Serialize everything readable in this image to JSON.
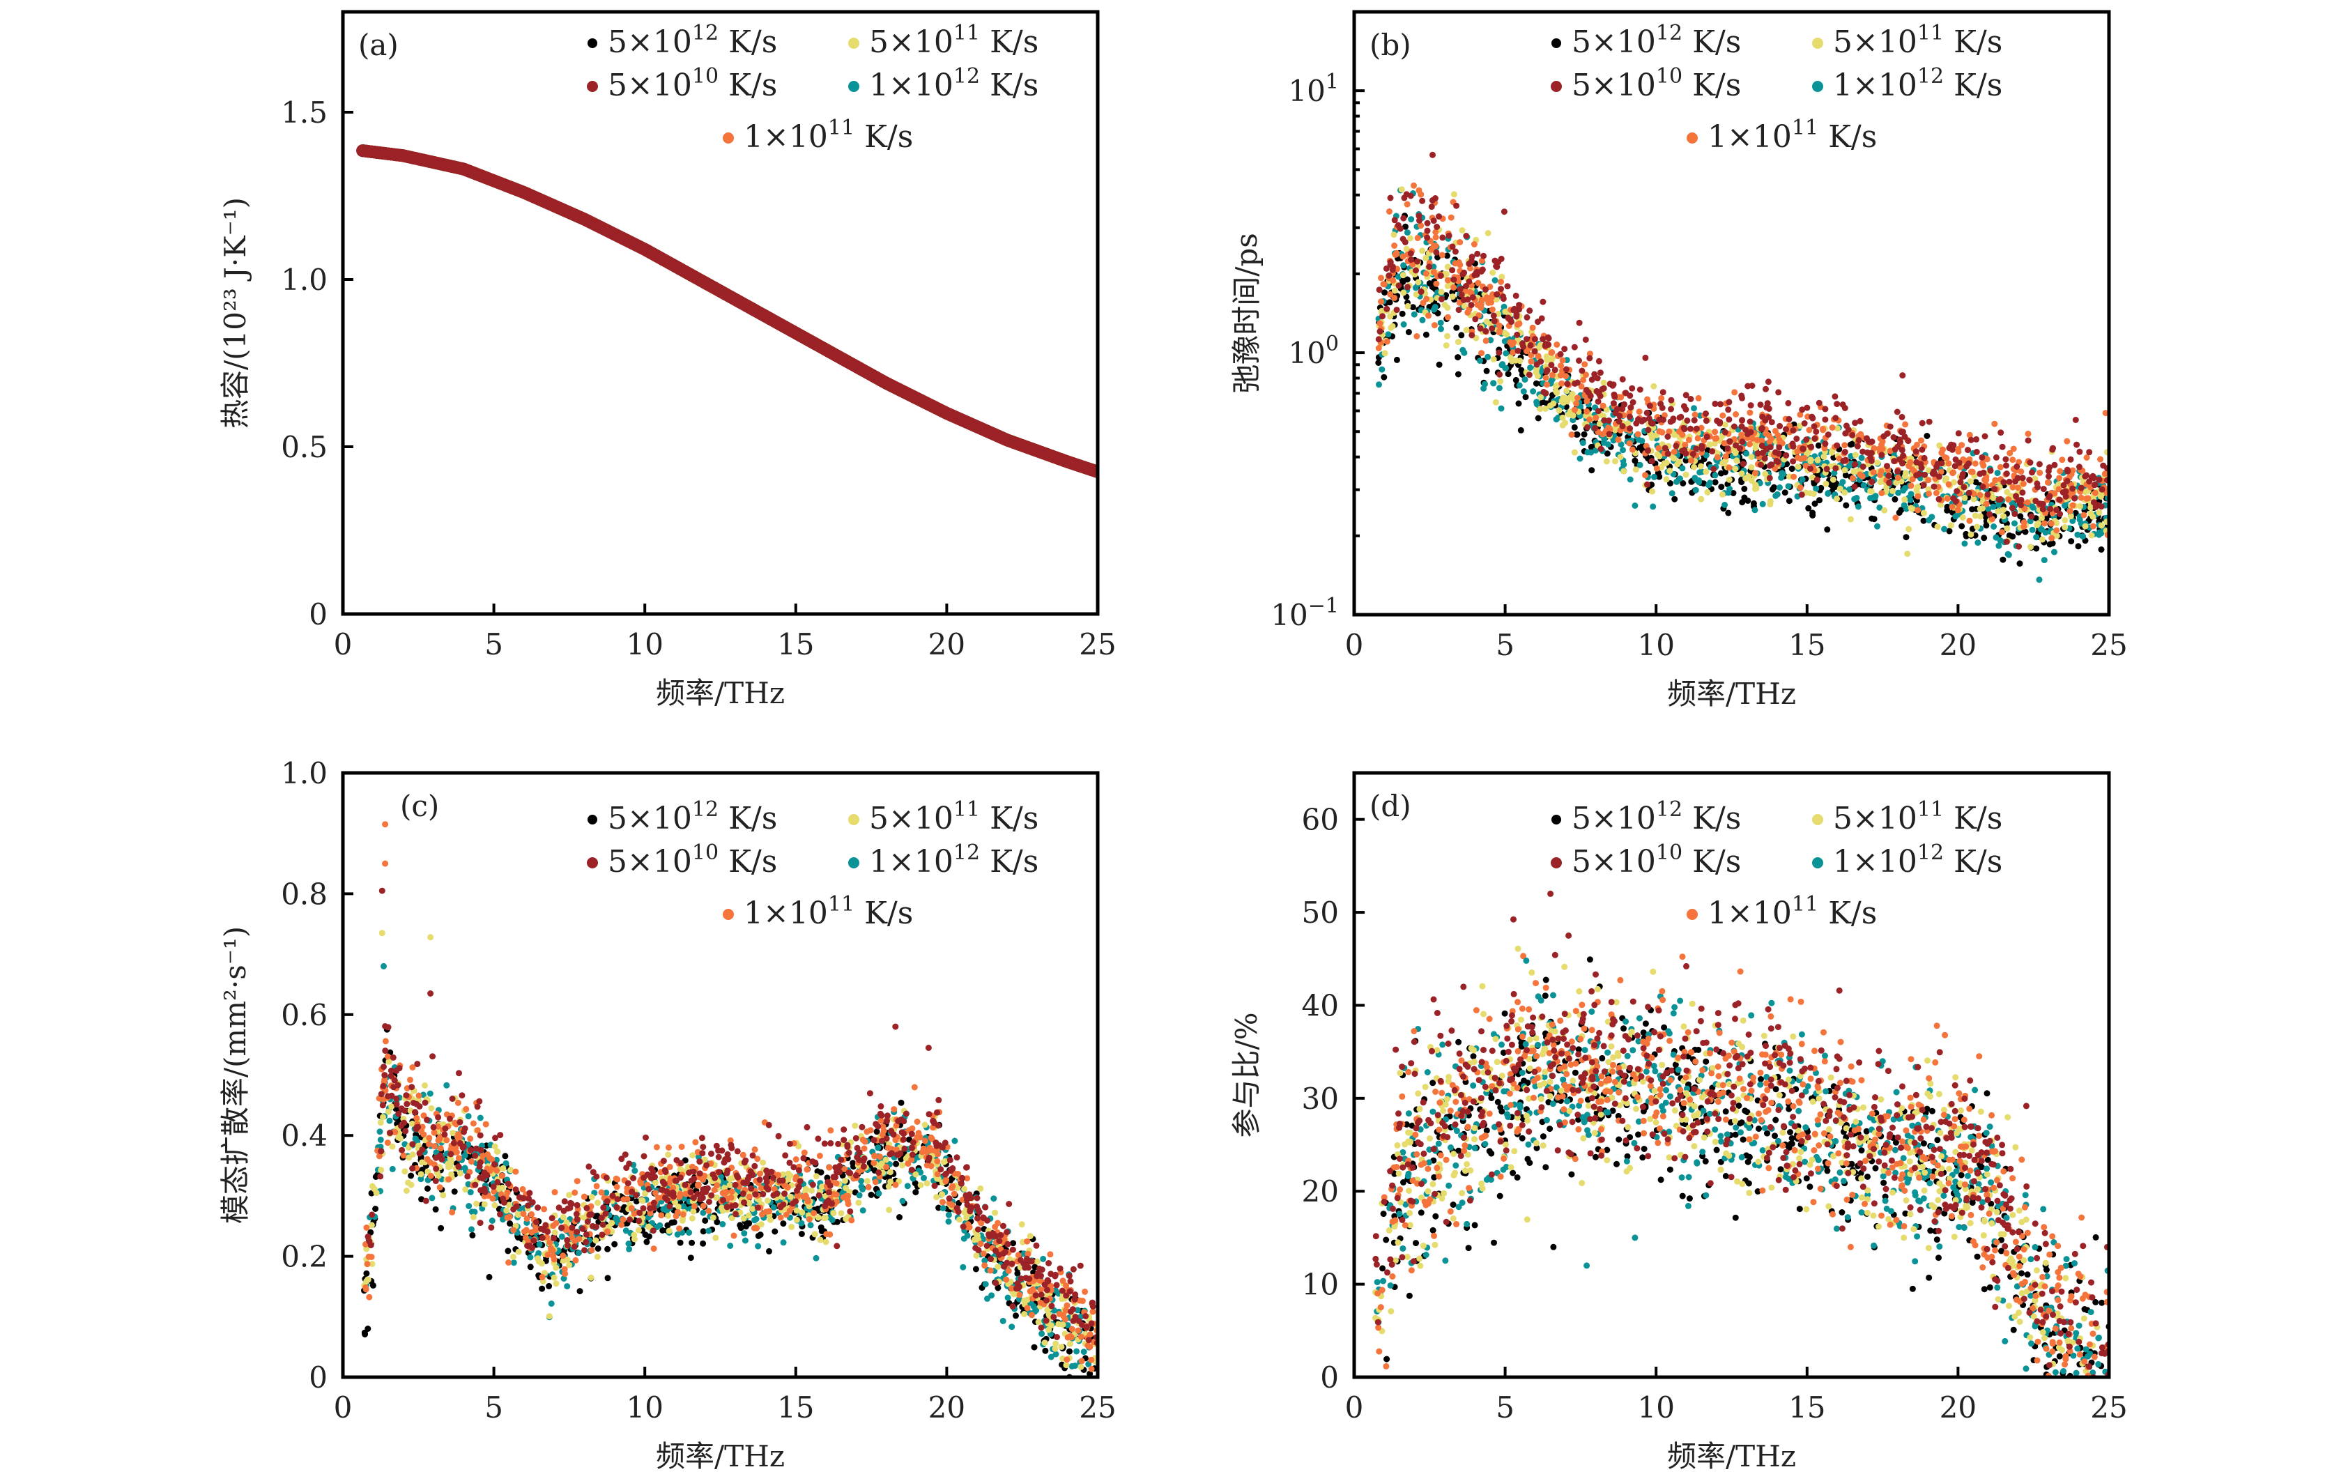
{
  "figure": {
    "legend": {
      "entries": [
        {
          "key": "r5e12",
          "mantissa": "5",
          "exp": "12",
          "unit": "K/s",
          "color": "#000000"
        },
        {
          "key": "r5e11",
          "mantissa": "5",
          "exp": "11",
          "unit": "K/s",
          "color": "#e6dc6e"
        },
        {
          "key": "r5e10",
          "mantissa": "5",
          "exp": "10",
          "unit": "K/s",
          "color": "#9b2226"
        },
        {
          "key": "r1e12",
          "mantissa": "1",
          "exp": "12",
          "unit": "K/s",
          "color": "#0a9396"
        },
        {
          "key": "r1e11",
          "mantissa": "1",
          "exp": "11",
          "unit": "K/s",
          "color": "#f4743b"
        }
      ],
      "times_symbol": "×",
      "ten": "10"
    }
  },
  "chart_data": [
    {
      "id": "a",
      "panel_tag": "(a)",
      "type": "scatter",
      "xlabel": "频率/THz",
      "ylabel": "热容/(10²³ J·K⁻¹)",
      "xlim": [
        0,
        25
      ],
      "ylim": [
        0,
        1.8
      ],
      "yscale": "linear",
      "xticks": [
        0,
        5,
        10,
        15,
        20,
        25
      ],
      "xtick_labels": [
        "0",
        "5",
        "10",
        "15",
        "20",
        "25"
      ],
      "yticks": [
        0,
        0.5,
        1.0,
        1.5
      ],
      "ytick_labels": [
        "0",
        "0.5",
        "1.0",
        "1.5"
      ],
      "grid": false,
      "legend_position": "top-right",
      "note": "All five series overlap on a single curve; dark red drawn on top",
      "series_trend": {
        "x": [
          0.65,
          2,
          4,
          6,
          8,
          10,
          12,
          14,
          16,
          18,
          20,
          22,
          24,
          25
        ],
        "y": [
          1.385,
          1.37,
          1.33,
          1.26,
          1.18,
          1.09,
          0.99,
          0.89,
          0.79,
          0.69,
          0.6,
          0.52,
          0.455,
          0.425
        ]
      },
      "series_spread": 0.0,
      "series_offsets": {
        "r5e12": 0,
        "r5e11": 0,
        "r1e12": 0,
        "r1e11": 0,
        "r5e10": 0
      },
      "draw_order": [
        "r5e12",
        "r5e11",
        "r1e12",
        "r1e11",
        "r5e10"
      ]
    },
    {
      "id": "b",
      "panel_tag": "(b)",
      "type": "scatter",
      "xlabel": "频率/THz",
      "ylabel": "弛豫时间/ps",
      "xlim": [
        0,
        25
      ],
      "ylim": [
        0.1,
        20
      ],
      "yscale": "log",
      "xticks": [
        0,
        5,
        10,
        15,
        20,
        25
      ],
      "xtick_labels": [
        "0",
        "5",
        "10",
        "15",
        "20",
        "25"
      ],
      "yticks": [
        0.1,
        1,
        10
      ],
      "ytick_labels": [
        {
          "base": "10",
          "exp": "−1"
        },
        {
          "base": "10",
          "exp": "0"
        },
        {
          "base": "10",
          "exp": "1"
        }
      ],
      "grid": false,
      "legend_position": "top-right",
      "series_trend": {
        "x": [
          0.8,
          1.5,
          2.5,
          3.5,
          4.5,
          5.5,
          6.5,
          7.5,
          8.5,
          9.5,
          10.5,
          12,
          14,
          16,
          18,
          20,
          22,
          23,
          24,
          25
        ],
        "y": [
          1.2,
          2.4,
          2.3,
          1.9,
          1.45,
          1.1,
          0.85,
          0.68,
          0.57,
          0.5,
          0.46,
          0.45,
          0.44,
          0.42,
          0.37,
          0.32,
          0.28,
          0.27,
          0.3,
          0.29
        ]
      },
      "series_spread": 0.08,
      "series_offsets": {
        "r5e12": -0.09,
        "r1e12": -0.06,
        "r5e11": -0.03,
        "r1e11": 0.02,
        "r5e10": 0.05
      },
      "draw_order": [
        "r5e12",
        "r1e12",
        "r5e11",
        "r1e11",
        "r5e10"
      ]
    },
    {
      "id": "c",
      "panel_tag": "(c)",
      "type": "scatter",
      "xlabel": "频率/THz",
      "ylabel": "模态扩散率/(mm²·s⁻¹)",
      "xlim": [
        0,
        25
      ],
      "ylim": [
        0,
        1.0
      ],
      "yscale": "linear",
      "xticks": [
        0,
        5,
        10,
        15,
        20,
        25
      ],
      "xtick_labels": [
        "0",
        "5",
        "10",
        "15",
        "20",
        "25"
      ],
      "yticks": [
        0,
        0.2,
        0.4,
        0.6,
        0.8,
        1.0
      ],
      "ytick_labels": [
        "0",
        "0.2",
        "0.4",
        "0.6",
        "0.8",
        "1.0"
      ],
      "grid": false,
      "legend_position": "top-right",
      "series_trend": {
        "x": [
          0.7,
          1.0,
          1.4,
          2,
          3,
          4,
          5,
          6,
          6.8,
          7.5,
          8.5,
          10,
          12,
          14,
          16,
          17,
          18.3,
          19.5,
          20.5,
          21.5,
          22.5,
          23.5,
          24.5,
          25
        ],
        "y": [
          0.16,
          0.25,
          0.5,
          0.42,
          0.38,
          0.38,
          0.33,
          0.26,
          0.21,
          0.24,
          0.27,
          0.3,
          0.32,
          0.31,
          0.31,
          0.35,
          0.39,
          0.38,
          0.3,
          0.22,
          0.16,
          0.12,
          0.08,
          0.06
        ]
      },
      "series_spread": 0.035,
      "series_offsets": {
        "r5e12": -0.025,
        "r1e12": -0.018,
        "r5e11": -0.008,
        "r1e11": 0.005,
        "r5e10": 0.02
      },
      "outliers": [
        {
          "series": "r1e11",
          "x": 1.4,
          "y": 0.915
        },
        {
          "series": "r1e11",
          "x": 1.4,
          "y": 0.85
        },
        {
          "series": "r5e10",
          "x": 1.3,
          "y": 0.805
        },
        {
          "series": "r5e11",
          "x": 1.3,
          "y": 0.735
        },
        {
          "series": "r5e11",
          "x": 2.9,
          "y": 0.728
        },
        {
          "series": "r1e12",
          "x": 1.35,
          "y": 0.68
        },
        {
          "series": "r5e10",
          "x": 2.9,
          "y": 0.635
        },
        {
          "series": "r5e10",
          "x": 18.3,
          "y": 0.58
        },
        {
          "series": "r5e10",
          "x": 19.4,
          "y": 0.545
        }
      ],
      "draw_order": [
        "r5e12",
        "r1e12",
        "r5e11",
        "r1e11",
        "r5e10"
      ]
    },
    {
      "id": "d",
      "panel_tag": "(d)",
      "type": "scatter",
      "xlabel": "频率/THz",
      "ylabel": "参与比/%",
      "xlim": [
        0,
        25
      ],
      "ylim": [
        0,
        65
      ],
      "yscale": "linear",
      "xticks": [
        0,
        5,
        10,
        15,
        20,
        25
      ],
      "xtick_labels": [
        "0",
        "5",
        "10",
        "15",
        "20",
        "25"
      ],
      "yticks": [
        0,
        10,
        20,
        30,
        40,
        50,
        60
      ],
      "ytick_labels": [
        "0",
        "10",
        "20",
        "30",
        "40",
        "50",
        "60"
      ],
      "grid": false,
      "legend_position": "top-right",
      "series_trend": {
        "x": [
          0.7,
          1.0,
          1.5,
          2.5,
          3.5,
          4.5,
          5.5,
          6.5,
          8,
          10,
          12,
          14,
          16,
          18,
          20,
          21,
          22,
          23,
          24,
          25
        ],
        "y": [
          5,
          12,
          23,
          26,
          27,
          30,
          33,
          33,
          32,
          31,
          30,
          29,
          26,
          24,
          24,
          20,
          13,
          7,
          3,
          1
        ]
      },
      "series_spread": 4.5,
      "series_offsets": {
        "r5e12": -1.5,
        "r1e12": -1.0,
        "r5e11": -0.5,
        "r1e11": 0.5,
        "r5e10": 1.2
      },
      "outliers": [
        {
          "series": "r5e10",
          "x": 6.5,
          "y": 52
        },
        {
          "series": "r5e10",
          "x": 7.1,
          "y": 47.5
        },
        {
          "series": "r1e11",
          "x": 5.6,
          "y": 45.3
        },
        {
          "series": "r1e12",
          "x": 5.7,
          "y": 44.8
        },
        {
          "series": "r5e10",
          "x": 11.0,
          "y": 44.2
        },
        {
          "series": "r1e12",
          "x": 7.7,
          "y": 12
        },
        {
          "series": "r5e12",
          "x": 6.6,
          "y": 14
        },
        {
          "series": "r1e12",
          "x": 9.3,
          "y": 15
        },
        {
          "series": "r1e11",
          "x": 19.3,
          "y": 37.8
        },
        {
          "series": "r5e12",
          "x": 18.5,
          "y": 9.5
        }
      ],
      "draw_order": [
        "r5e12",
        "r1e12",
        "r5e11",
        "r1e11",
        "r5e10"
      ]
    }
  ]
}
